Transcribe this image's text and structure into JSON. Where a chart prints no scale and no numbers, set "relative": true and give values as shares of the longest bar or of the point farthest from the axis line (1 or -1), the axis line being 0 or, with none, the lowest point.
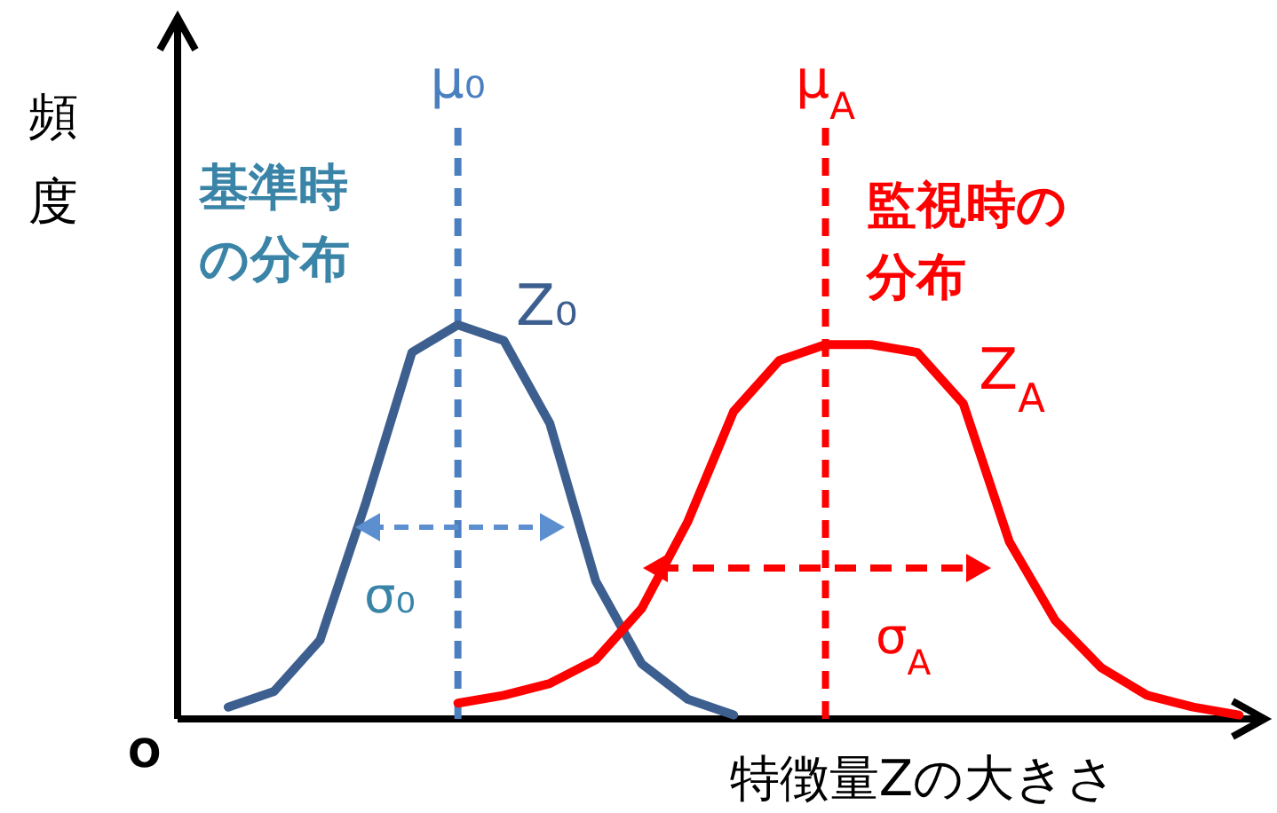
{
  "chart_data": {
    "type": "line",
    "relative": true,
    "ylabel": "頻度",
    "xlabel": "特徴量Zの大きさ",
    "categories": [
      null,
      null,
      null,
      null,
      null,
      null,
      null,
      null,
      null,
      null,
      null,
      null,
      null,
      null,
      null,
      null,
      null,
      null,
      null,
      null,
      null,
      null,
      null,
      null
    ],
    "series": [
      {
        "name": "Z₀",
        "color": "#3d5f8f",
        "values": [
          null,
          0.03,
          0.07,
          0.2,
          0.55,
          0.93,
          1.0,
          0.96,
          0.75,
          0.35,
          0.14,
          0.05,
          0.01,
          null,
          null,
          null,
          null,
          null,
          null,
          null,
          null,
          null,
          null,
          null
        ]
      },
      {
        "name": "Z$_{A}$",
        "color": "#ff0000",
        "values": [
          null,
          null,
          null,
          null,
          null,
          null,
          0.04,
          0.06,
          0.09,
          0.15,
          0.28,
          0.5,
          0.78,
          0.91,
          0.95,
          0.95,
          0.93,
          0.8,
          0.45,
          0.25,
          0.13,
          0.06,
          0.03,
          0.01
        ]
      }
    ],
    "annotations": [
      "O",
      "基準時の分布",
      "監視時の分布",
      "σ₀",
      "σ$_{A}$",
      "μ₀",
      "μ$_{A}$"
    ]
  }
}
